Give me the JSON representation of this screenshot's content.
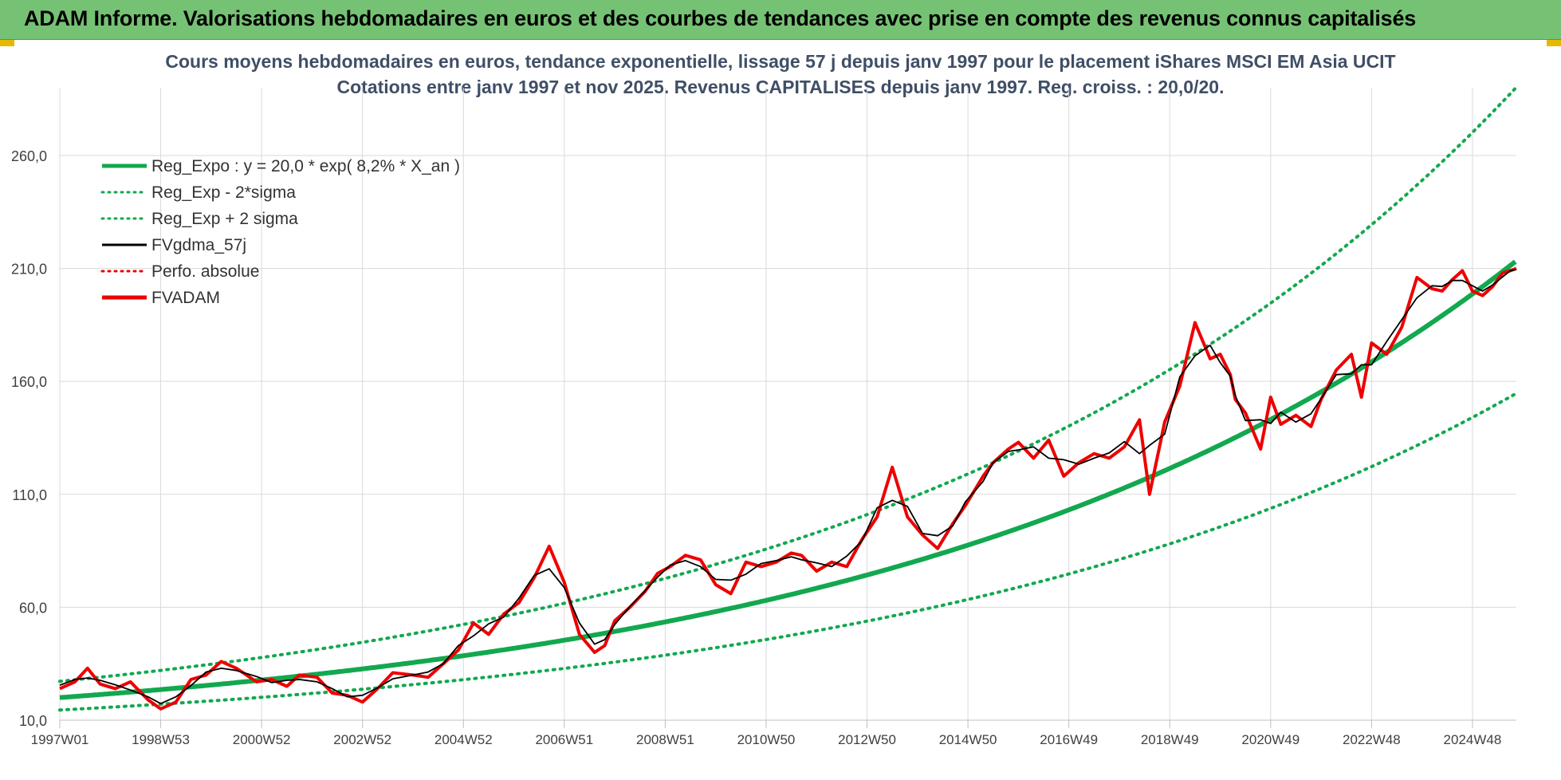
{
  "header": {
    "title": "ADAM Informe. Valorisations hebdomadaires en euros et des courbes de tendances avec prise en compte des revenus connus capitalisés"
  },
  "colors": {
    "header_bg": "#76c274",
    "trend_green": "#12a84f",
    "price_red": "#ee0000",
    "smooth_black": "#000000",
    "axis_text": "#404040",
    "title_text": "#3f4f66"
  },
  "chart_data": {
    "type": "line",
    "title": "Cours moyens hebdomadaires en euros, tendance exponentielle, lissage 57 j depuis janv 1997 pour le placement iShares MSCI EM Asia UCIT",
    "subtitle": "Cotations entre janv 1997 et nov 2025. Revenus CAPITALISES depuis janv 1997. Reg. croiss. : 20,0/20.",
    "xlabel": "",
    "ylabel": "",
    "ylim": [
      10,
      290
    ],
    "y_ticks": [
      "10,0",
      "60,0",
      "110,0",
      "160,0",
      "210,0",
      "260,0"
    ],
    "y_tick_values": [
      10,
      60,
      110,
      160,
      210,
      260
    ],
    "x_range_years": [
      1997.0,
      2025.87
    ],
    "x_ticks": [
      "1997W01",
      "1998W53",
      "2000W52",
      "2002W52",
      "2004W52",
      "2006W51",
      "2008W51",
      "2010W50",
      "2012W50",
      "2014W50",
      "2016W49",
      "2018W49",
      "2020W49",
      "2022W48",
      "2024W48"
    ],
    "x_tick_years": [
      1997.0,
      1999.0,
      2001.0,
      2003.0,
      2005.0,
      2007.0,
      2009.0,
      2011.0,
      2013.0,
      2015.0,
      2017.0,
      2019.0,
      2021.0,
      2023.0,
      2025.0
    ],
    "grid": true,
    "legend_position": "top-left",
    "legend": [
      {
        "label": "Reg_Expo : y = 20,0 * exp( 8,2% *  X_an )",
        "style": "solid-thick",
        "color": "#12a84f"
      },
      {
        "label": "Reg_Exp - 2*sigma",
        "style": "dotted",
        "color": "#12a84f"
      },
      {
        "label": "Reg_Exp + 2 sigma",
        "style": "dotted",
        "color": "#12a84f"
      },
      {
        "label": "FVgdma_57j",
        "style": "solid",
        "color": "#000000"
      },
      {
        "label": "Perfo. absolue",
        "style": "dotted",
        "color": "#ee0000"
      },
      {
        "label": "FVADAM",
        "style": "solid-thick",
        "color": "#ee0000"
      }
    ],
    "regression": {
      "a": 20.0,
      "rate": 0.082,
      "lower_factor": 0.725,
      "upper_factor": 1.36
    },
    "series": [
      {
        "name": "FVADAM",
        "x": [
          1997.0,
          1997.3,
          1997.55,
          1997.8,
          1998.1,
          1998.4,
          1998.75,
          1999.0,
          1999.3,
          1999.6,
          1999.9,
          2000.2,
          2000.5,
          2000.9,
          2001.2,
          2001.5,
          2001.75,
          2002.1,
          2002.4,
          2002.7,
          2003.0,
          2003.3,
          2003.6,
          2004.0,
          2004.3,
          2004.6,
          2004.9,
          2005.2,
          2005.5,
          2005.8,
          2006.1,
          2006.4,
          2006.7,
          2007.0,
          2007.3,
          2007.6,
          2007.8,
          2008.0,
          2008.3,
          2008.6,
          2008.85,
          2009.1,
          2009.4,
          2009.7,
          2010.0,
          2010.3,
          2010.6,
          2010.9,
          2011.2,
          2011.5,
          2011.7,
          2012.0,
          2012.3,
          2012.6,
          2012.9,
          2013.2,
          2013.5,
          2013.8,
          2014.1,
          2014.4,
          2014.7,
          2014.95,
          2015.3,
          2015.5,
          2015.8,
          2016.0,
          2016.3,
          2016.6,
          2016.9,
          2017.2,
          2017.5,
          2017.8,
          2018.1,
          2018.4,
          2018.6,
          2018.9,
          2019.2,
          2019.5,
          2019.8,
          2020.0,
          2020.2,
          2020.3,
          2020.5,
          2020.8,
          2021.0,
          2021.2,
          2021.5,
          2021.8,
          2022.0,
          2022.3,
          2022.6,
          2022.8,
          2023.0,
          2023.3,
          2023.6,
          2023.9,
          2024.2,
          2024.4,
          2024.6,
          2024.8,
          2025.0,
          2025.2,
          2025.4,
          2025.6,
          2025.75,
          2025.87
        ],
        "values": [
          24,
          27,
          33,
          26,
          24,
          27,
          19,
          15,
          18,
          28,
          30,
          36,
          33,
          27,
          28,
          25,
          30,
          29,
          22,
          21,
          18,
          24,
          31,
          30,
          29,
          35,
          41,
          53,
          48,
          57,
          62,
          73,
          87,
          71,
          48,
          40,
          43,
          54,
          60,
          67,
          75,
          78,
          83,
          81,
          70,
          66,
          80,
          78,
          80,
          84,
          83,
          76,
          80,
          78,
          90,
          100,
          122,
          100,
          92,
          86,
          97,
          105,
          118,
          124,
          130,
          133,
          126,
          134,
          118,
          124,
          128,
          126,
          131,
          143,
          110,
          142,
          158,
          186,
          170,
          172,
          163,
          152,
          146,
          130,
          153,
          141,
          145,
          140,
          152,
          165,
          172,
          153,
          177,
          172,
          184,
          206,
          201,
          200,
          205,
          209,
          200,
          198,
          202,
          208,
          209,
          210
        ]
      }
    ]
  }
}
